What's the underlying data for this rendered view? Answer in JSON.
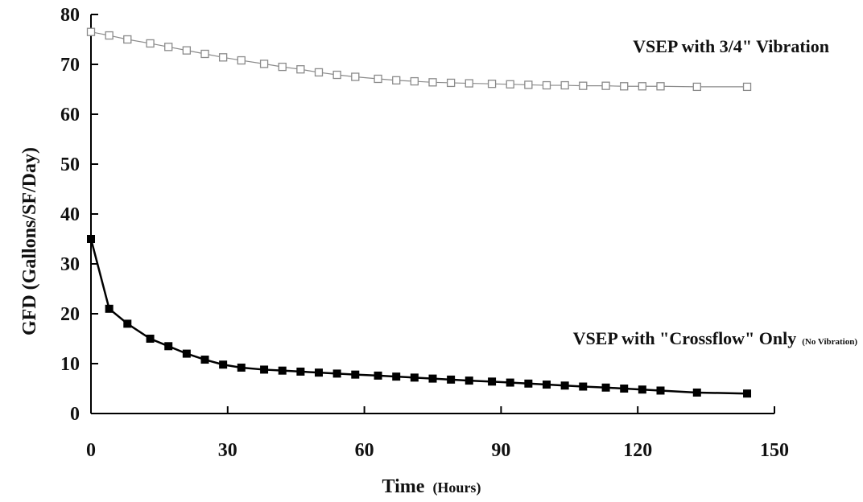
{
  "chart_data": {
    "type": "line",
    "title": "",
    "xlabel": "Time",
    "xlabel_unit": "(Hours)",
    "ylabel": "GFD (Gallons/SF/Day)",
    "xlim": [
      0,
      150
    ],
    "ylim": [
      0,
      80
    ],
    "xticks": [
      0,
      30,
      60,
      90,
      120,
      150
    ],
    "yticks": [
      0,
      10,
      20,
      30,
      40,
      50,
      60,
      70,
      80
    ],
    "grid": false,
    "series": [
      {
        "name": "VSEP with 3/4\" Vibration",
        "note": "",
        "color": "#8a8a8a",
        "marker": "open-square",
        "x": [
          0,
          4,
          8,
          13,
          17,
          21,
          25,
          29,
          33,
          38,
          42,
          46,
          50,
          54,
          58,
          63,
          67,
          71,
          75,
          79,
          83,
          88,
          92,
          96,
          100,
          104,
          108,
          113,
          117,
          121,
          125,
          133,
          144
        ],
        "values": [
          76.5,
          75.8,
          75.0,
          74.2,
          73.5,
          72.8,
          72.1,
          71.4,
          70.8,
          70.1,
          69.5,
          69.0,
          68.4,
          67.9,
          67.5,
          67.1,
          66.8,
          66.6,
          66.4,
          66.3,
          66.2,
          66.1,
          66.0,
          65.9,
          65.8,
          65.8,
          65.7,
          65.7,
          65.6,
          65.6,
          65.6,
          65.5,
          65.5
        ]
      },
      {
        "name": "VSEP with \"Crossflow\" Only",
        "note": "(No Vibration)",
        "color": "#000000",
        "marker": "filled-square",
        "x": [
          0,
          4,
          8,
          13,
          17,
          21,
          25,
          29,
          33,
          38,
          42,
          46,
          50,
          54,
          58,
          63,
          67,
          71,
          75,
          79,
          83,
          88,
          92,
          96,
          100,
          104,
          108,
          113,
          117,
          121,
          125,
          133,
          144
        ],
        "values": [
          35,
          21,
          18,
          15,
          13.5,
          12,
          10.8,
          9.8,
          9.2,
          8.8,
          8.6,
          8.4,
          8.2,
          8.0,
          7.8,
          7.6,
          7.4,
          7.2,
          7.0,
          6.8,
          6.6,
          6.4,
          6.2,
          6.0,
          5.8,
          5.6,
          5.4,
          5.2,
          5.0,
          4.8,
          4.6,
          4.2,
          4.0
        ]
      }
    ]
  }
}
